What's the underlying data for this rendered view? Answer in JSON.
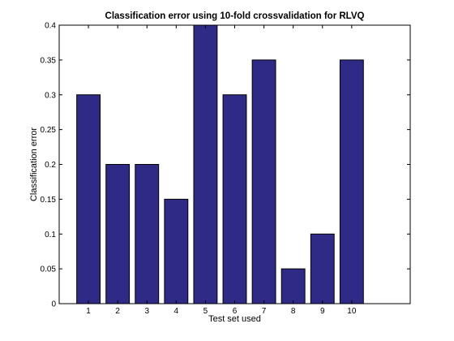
{
  "chart_data": {
    "type": "bar",
    "title": "Classification error using 10-fold crossvalidation for RLVQ",
    "xlabel": "Test set used",
    "ylabel": "Classification error",
    "categories": [
      "1",
      "2",
      "3",
      "4",
      "5",
      "6",
      "7",
      "8",
      "9",
      "10"
    ],
    "values": [
      0.3,
      0.2,
      0.2,
      0.15,
      0.4,
      0.3,
      0.35,
      0.05,
      0.1,
      0.35
    ],
    "xlim": [
      0,
      12
    ],
    "ylim": [
      0,
      0.4
    ],
    "yticks": [
      "0",
      "0.05",
      "0.1",
      "0.15",
      "0.2",
      "0.25",
      "0.3",
      "0.35",
      "0.4"
    ],
    "bar_color": "#2e2a86",
    "grid": false,
    "legend": "none"
  }
}
